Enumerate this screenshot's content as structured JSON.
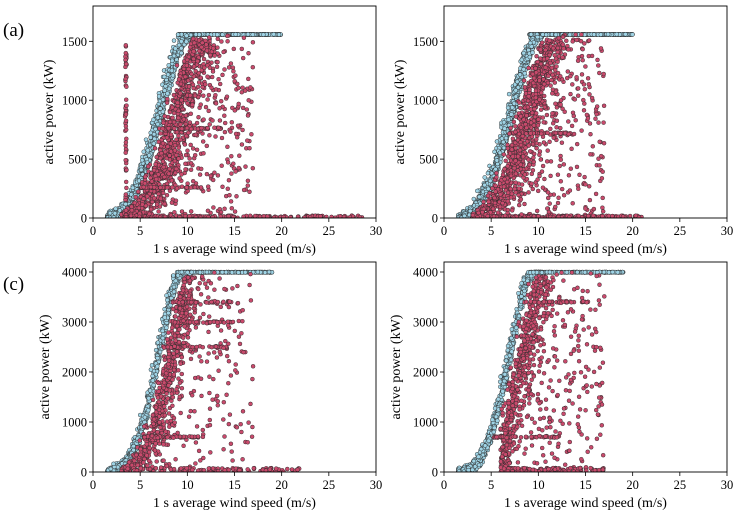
{
  "panel_labels": [
    "(a)",
    "(c)"
  ],
  "chart_data": [
    {
      "type": "scatter",
      "xlabel": "1 s average wind speed (m/s)",
      "ylabel": "active power (kW)",
      "xlim": [
        0,
        30
      ],
      "ylim": [
        0,
        1800
      ],
      "xticks": [
        0,
        5,
        10,
        15,
        20,
        25,
        30
      ],
      "yticks": [
        0,
        500,
        1000,
        1500
      ],
      "rated_power": 1560,
      "grid": false,
      "legend": "none",
      "series": [
        {
          "color": "#9fd4e6",
          "power_curve": {
            "x": [
              2,
              3,
              4,
              5,
              6,
              7,
              8,
              9,
              10,
              11,
              12,
              13,
              15,
              20
            ],
            "y": [
              0,
              30,
              110,
              260,
              480,
              760,
              1060,
              1350,
              1540,
              1560,
              1560,
              1560,
              1560,
              1560
            ]
          },
          "x_range": [
            1.5,
            20
          ]
        },
        {
          "color": "#c94a6c",
          "x_range": [
            3,
            29
          ],
          "features": {
            "vertical_line_x": 3.5,
            "vertical_line_y": [
              0,
              1480
            ],
            "horizontal_band_y": [
              260,
              760
            ]
          }
        }
      ]
    },
    {
      "type": "scatter",
      "xlabel": "1 s average wind speed (m/s)",
      "ylabel": "active power (kW)",
      "xlim": [
        0,
        30
      ],
      "ylim": [
        0,
        1800
      ],
      "xticks": [
        0,
        5,
        10,
        15,
        20,
        25,
        30
      ],
      "yticks": [
        0,
        500,
        1000,
        1500
      ],
      "rated_power": 1560,
      "grid": false,
      "legend": "none",
      "series": [
        {
          "color": "#9fd4e6",
          "power_curve": {
            "x": [
              2,
              3,
              4,
              5,
              6,
              7,
              8,
              9,
              10,
              11,
              12,
              13,
              15,
              20
            ],
            "y": [
              0,
              30,
              110,
              260,
              480,
              760,
              1060,
              1350,
              1540,
              1560,
              1560,
              1560,
              1560,
              1560
            ]
          },
          "x_range": [
            1.5,
            20
          ]
        },
        {
          "color": "#c94a6c",
          "x_range": [
            3,
            21
          ],
          "features": {
            "horizontal_band_y": [
              720
            ]
          }
        }
      ]
    },
    {
      "type": "scatter",
      "xlabel": "1 s average wind speed (m/s)",
      "ylabel": "active power (kW)",
      "xlim": [
        0,
        30
      ],
      "ylim": [
        0,
        4200
      ],
      "xticks": [
        0,
        5,
        10,
        15,
        20,
        25,
        30
      ],
      "yticks": [
        0,
        1000,
        2000,
        3000,
        4000
      ],
      "rated_power": 4000,
      "grid": false,
      "legend": "none",
      "series": [
        {
          "color": "#9fd4e6",
          "power_curve": {
            "x": [
              2,
              3,
              4,
              5,
              6,
              7,
              8,
              8.5,
              9,
              9.5,
              10,
              12,
              15,
              19
            ],
            "y": [
              0,
              60,
              250,
              650,
              1300,
              2200,
              3100,
              3550,
              3850,
              3980,
              4000,
              4000,
              4000,
              4000
            ]
          },
          "x_range": [
            1.5,
            19
          ]
        },
        {
          "color": "#c94a6c",
          "x_range": [
            3,
            22
          ],
          "features": {
            "horizontal_band_y": [
              700,
              2500,
              3000,
              3400
            ]
          }
        }
      ]
    },
    {
      "type": "scatter",
      "xlabel": "1 s average wind speed (m/s)",
      "ylabel": "active power (kW)",
      "xlim": [
        0,
        30
      ],
      "ylim": [
        0,
        4200
      ],
      "xticks": [
        0,
        5,
        10,
        15,
        20,
        25,
        30
      ],
      "yticks": [
        0,
        1000,
        2000,
        3000,
        4000
      ],
      "rated_power": 4000,
      "grid": false,
      "legend": "none",
      "series": [
        {
          "color": "#9fd4e6",
          "power_curve": {
            "x": [
              2,
              3,
              4,
              5,
              6,
              7,
              8,
              8.5,
              9,
              9.5,
              10,
              12,
              15,
              19
            ],
            "y": [
              0,
              60,
              250,
              650,
              1300,
              2200,
              3100,
              3550,
              3850,
              3980,
              4000,
              4000,
              4000,
              4000
            ]
          },
          "x_range": [
            1.5,
            19
          ]
        },
        {
          "color": "#c94a6c",
          "x_range": [
            6,
            17
          ],
          "features": {
            "horizontal_band_y": [
              700,
              3400
            ]
          }
        }
      ]
    }
  ]
}
